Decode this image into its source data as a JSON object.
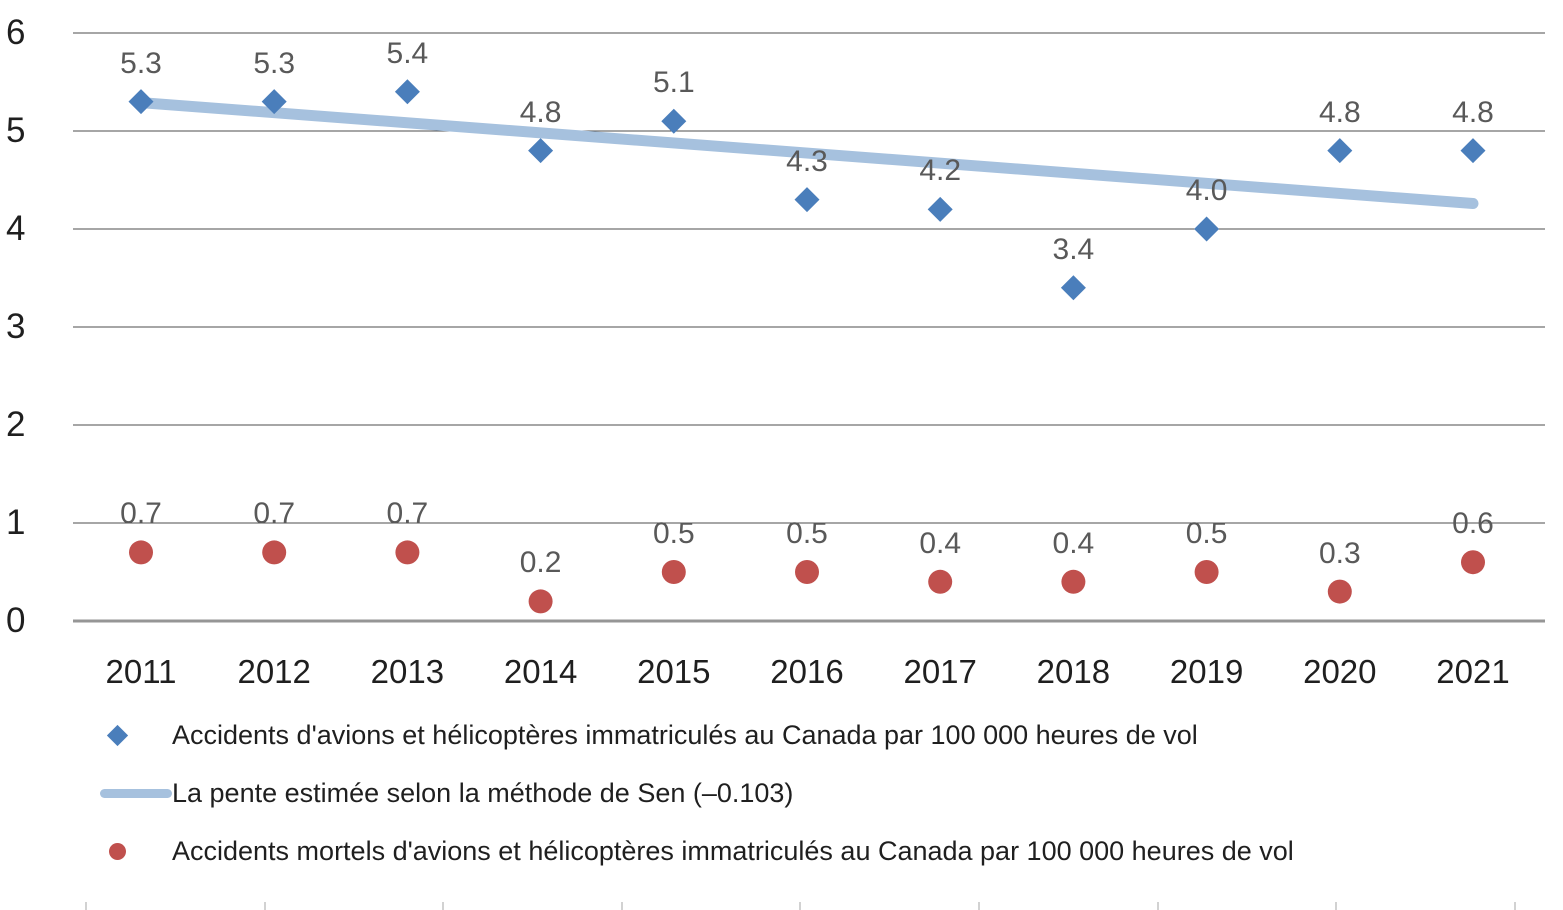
{
  "chart_data": {
    "type": "scatter",
    "x": [
      2011,
      2012,
      2013,
      2014,
      2015,
      2016,
      2017,
      2018,
      2019,
      2020,
      2021
    ],
    "series": [
      {
        "name": "Accidents d'avions et hélicoptères immatriculés au Canada par 100 000 heures de vol",
        "marker": "diamond",
        "color": "#4A7EBB",
        "values": [
          5.3,
          5.3,
          5.4,
          4.8,
          5.1,
          4.3,
          4.2,
          3.4,
          4.0,
          4.8,
          4.8
        ],
        "labels": [
          "5.3",
          "5.3",
          "5.4",
          "4.8",
          "5.1",
          "4.3",
          "4.2",
          "3.4",
          "4.0",
          "4.8",
          "4.8"
        ]
      },
      {
        "name": "Accidents mortels d'avions et hélicoptères immatriculés au Canada par 100 000 heures de vol",
        "marker": "circle",
        "color": "#C0504D",
        "values": [
          0.7,
          0.7,
          0.7,
          0.2,
          0.5,
          0.5,
          0.4,
          0.4,
          0.5,
          0.3,
          0.6
        ],
        "labels": [
          "0.7",
          "0.7",
          "0.7",
          "0.2",
          "0.5",
          "0.5",
          "0.4",
          "0.4",
          "0.5",
          "0.3",
          "0.6"
        ]
      }
    ],
    "trend": {
      "name": "La pente estimée selon la méthode de Sen (–0.103)",
      "slope": -0.103,
      "start_value": 5.29,
      "end_value": 4.26,
      "color": "#A6C1DE"
    },
    "yticks": [
      6,
      5,
      4,
      3,
      2,
      1,
      0
    ],
    "ylim": [
      0,
      6
    ],
    "grid": "horizontal",
    "legend_position": "bottom-left",
    "data_label_color": "#595959",
    "gridline_color": "#4d4d4d",
    "zero_axis_color": "#969696"
  }
}
